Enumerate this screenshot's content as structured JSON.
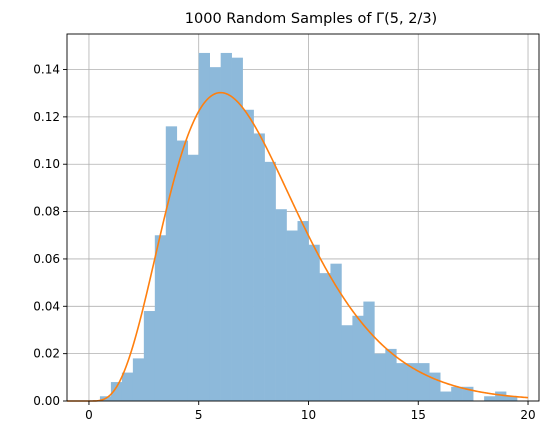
{
  "chart_data": {
    "type": "bar",
    "title": "1000 Random Samples of Γ(5, 2/3)",
    "xlabel": "",
    "ylabel": "",
    "xlim": [
      -1,
      20.5
    ],
    "ylim": [
      0,
      0.155
    ],
    "xticks": [
      0,
      5,
      10,
      15,
      20
    ],
    "yticks": [
      0.0,
      0.02,
      0.04,
      0.06,
      0.08,
      0.1,
      0.12,
      0.14
    ],
    "grid": true,
    "histogram": {
      "color": "#8db9da",
      "bin_width": 0.5,
      "bins": [
        {
          "x0": 0.5,
          "density": 0.002
        },
        {
          "x0": 1.0,
          "density": 0.008
        },
        {
          "x0": 1.5,
          "density": 0.012
        },
        {
          "x0": 2.0,
          "density": 0.018
        },
        {
          "x0": 2.5,
          "density": 0.038
        },
        {
          "x0": 3.0,
          "density": 0.07
        },
        {
          "x0": 3.5,
          "density": 0.116
        },
        {
          "x0": 4.0,
          "density": 0.11
        },
        {
          "x0": 4.5,
          "density": 0.104
        },
        {
          "x0": 5.0,
          "density": 0.147
        },
        {
          "x0": 5.5,
          "density": 0.141
        },
        {
          "x0": 6.0,
          "density": 0.147
        },
        {
          "x0": 6.5,
          "density": 0.145
        },
        {
          "x0": 7.0,
          "density": 0.123
        },
        {
          "x0": 7.5,
          "density": 0.113
        },
        {
          "x0": 8.0,
          "density": 0.101
        },
        {
          "x0": 8.5,
          "density": 0.081
        },
        {
          "x0": 9.0,
          "density": 0.072
        },
        {
          "x0": 9.5,
          "density": 0.076
        },
        {
          "x0": 10.0,
          "density": 0.066
        },
        {
          "x0": 10.5,
          "density": 0.054
        },
        {
          "x0": 11.0,
          "density": 0.058
        },
        {
          "x0": 11.5,
          "density": 0.032
        },
        {
          "x0": 12.0,
          "density": 0.036
        },
        {
          "x0": 12.5,
          "density": 0.042
        },
        {
          "x0": 13.0,
          "density": 0.02
        },
        {
          "x0": 13.5,
          "density": 0.022
        },
        {
          "x0": 14.0,
          "density": 0.016
        },
        {
          "x0": 14.5,
          "density": 0.016
        },
        {
          "x0": 15.0,
          "density": 0.016
        },
        {
          "x0": 15.5,
          "density": 0.012
        },
        {
          "x0": 16.0,
          "density": 0.004
        },
        {
          "x0": 16.5,
          "density": 0.006
        },
        {
          "x0": 17.0,
          "density": 0.006
        },
        {
          "x0": 17.5,
          "density": 0.0
        },
        {
          "x0": 18.0,
          "density": 0.002
        },
        {
          "x0": 18.5,
          "density": 0.004
        },
        {
          "x0": 19.0,
          "density": 0.002
        }
      ]
    },
    "curve": {
      "type": "line",
      "color": "#ff7f0e",
      "distribution": "gamma",
      "shape": 5,
      "rate": 0.6666667,
      "x_range": [
        -1,
        20
      ]
    }
  }
}
